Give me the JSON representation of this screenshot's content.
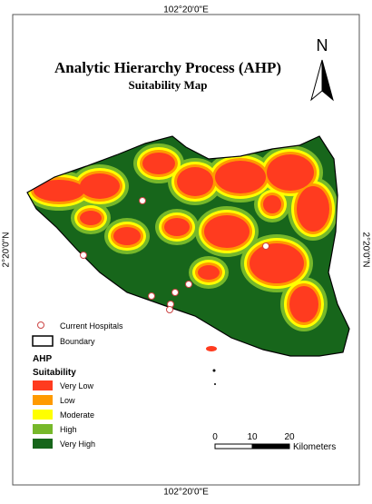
{
  "map": {
    "title": "Analytic Hierarchy Process (AHP)",
    "subtitle": "Suitability Map",
    "north": "N",
    "coords": {
      "top": "102°20'0\"E",
      "bottom": "102°20'0\"E",
      "left": "2°20'0\"N",
      "right": "2°20'0\"N"
    },
    "legend": {
      "hospitals": "Current Hospitals",
      "boundary": "Boundary",
      "heading": "AHP",
      "subheading": "Suitability",
      "classes": [
        {
          "label": "Very Low",
          "color": "#ff3b1f"
        },
        {
          "label": "Low",
          "color": "#ff9a00"
        },
        {
          "label": "Moderate",
          "color": "#ffff00"
        },
        {
          "label": "High",
          "color": "#76b82a"
        },
        {
          "label": "Very High",
          "color": "#17661b"
        }
      ]
    },
    "scale": {
      "ticks": [
        "0",
        "10",
        "20"
      ],
      "unit": "Kilometers"
    }
  }
}
